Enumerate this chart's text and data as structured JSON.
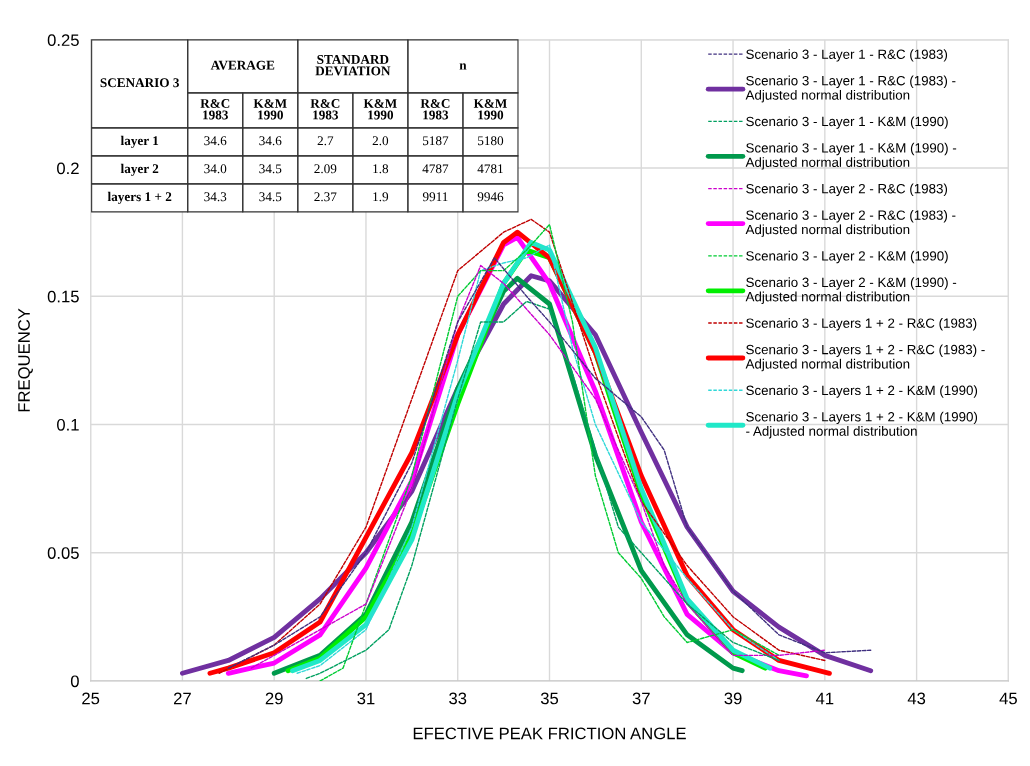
{
  "chart_data": {
    "type": "line",
    "xlabel": "EFECTIVE PEAK FRICTION ANGLE",
    "ylabel": "FREQUENCY",
    "xlim": [
      25,
      45
    ],
    "xticks": [
      25,
      27,
      29,
      31,
      33,
      35,
      37,
      39,
      41,
      43,
      45
    ],
    "ylim": [
      0,
      0.25
    ],
    "yticks": [
      0,
      0.05,
      0.1,
      0.15,
      0.2,
      0.25
    ],
    "grid": true,
    "legend": "top right",
    "marker": "none",
    "series": [
      {
        "name": "Scenario 3 - Layer 1 - R&C (1983)",
        "color": "#403080",
        "line_style": "dashed",
        "x": [
          28,
          29,
          30,
          31,
          32,
          33,
          33.8,
          34.5,
          35,
          36,
          37,
          37.5,
          38,
          39,
          40,
          41,
          42
        ],
        "values": [
          0.005,
          0.014,
          0.025,
          0.05,
          0.085,
          0.14,
          0.165,
          0.15,
          0.14,
          0.118,
          0.103,
          0.09,
          0.06,
          0.035,
          0.018,
          0.011,
          0.012
        ]
      },
      {
        "name": "Scenario 3 - Layer 1 - R&C (1983) -\nAdjusted normal distribution",
        "color": "#7030a0",
        "line_style": "solid",
        "x": [
          27,
          28,
          29,
          30,
          31,
          32,
          33,
          34,
          34.6,
          35,
          36,
          37,
          38,
          39,
          40,
          41,
          42
        ],
        "values": [
          0.003,
          0.008,
          0.017,
          0.032,
          0.05,
          0.074,
          0.114,
          0.147,
          0.158,
          0.156,
          0.135,
          0.097,
          0.06,
          0.035,
          0.021,
          0.01,
          0.004
        ]
      },
      {
        "name": "Scenario 3 - Layer 1 - K&M (1990)",
        "color": "#00a060",
        "line_style": "dashed",
        "x": [
          29.7,
          30,
          31,
          31.5,
          32,
          33,
          33.5,
          34,
          34.5,
          35,
          35.5,
          36,
          36.5,
          37,
          38,
          39,
          40
        ],
        "values": [
          0.001,
          0.003,
          0.012,
          0.02,
          0.045,
          0.11,
          0.14,
          0.14,
          0.148,
          0.145,
          0.12,
          0.09,
          0.06,
          0.05,
          0.03,
          0.015,
          0.008
        ]
      },
      {
        "name": "Scenario 3 - Layer 1 - K&M (1990) -\nAdjusted normal distribution",
        "color": "#00994c",
        "line_style": "solid",
        "x": [
          29,
          30,
          31,
          32,
          33,
          34,
          34.3,
          35,
          36,
          37,
          38,
          39,
          39.2
        ],
        "values": [
          0.003,
          0.01,
          0.026,
          0.062,
          0.114,
          0.152,
          0.157,
          0.147,
          0.088,
          0.043,
          0.018,
          0.005,
          0.004
        ]
      },
      {
        "name": "Scenario 3 - Layer 2 - R&C (1983)",
        "color": "#cc00cc",
        "line_style": "dashed",
        "x": [
          28.5,
          29,
          30,
          31,
          32,
          33,
          33.5,
          34,
          35,
          36,
          37,
          37.5,
          38,
          39,
          40,
          41
        ],
        "values": [
          0.005,
          0.01,
          0.02,
          0.03,
          0.075,
          0.14,
          0.162,
          0.155,
          0.135,
          0.11,
          0.07,
          0.045,
          0.03,
          0.01,
          0.01,
          0.012
        ]
      },
      {
        "name": "Scenario 3 - Layer 2 - R&C (1983) -\nAdjusted normal distribution",
        "color": "#ff00ff",
        "line_style": "solid",
        "x": [
          28,
          29,
          30,
          31,
          32,
          33,
          34,
          34.3,
          35,
          36,
          37,
          38,
          39,
          40,
          40.6
        ],
        "values": [
          0.003,
          0.007,
          0.018,
          0.044,
          0.078,
          0.135,
          0.17,
          0.173,
          0.155,
          0.113,
          0.062,
          0.026,
          0.011,
          0.004,
          0.002
        ]
      },
      {
        "name": "Scenario 3 - Layer 2 - K&M (1990)",
        "color": "#00cc33",
        "line_style": "dashed",
        "x": [
          30,
          30.5,
          31,
          32,
          33,
          33.5,
          34,
          34.5,
          35,
          35.5,
          36,
          36.5,
          37,
          37.5,
          38,
          39,
          40
        ],
        "values": [
          0,
          0.005,
          0.03,
          0.08,
          0.15,
          0.16,
          0.16,
          0.168,
          0.178,
          0.14,
          0.08,
          0.05,
          0.04,
          0.025,
          0.015,
          0.02,
          0.01
        ]
      },
      {
        "name": "Scenario 3 - Layer 2 - K&M (1990) -\nAdjusted normal distribution",
        "color": "#00ee00",
        "line_style": "solid",
        "x": [
          29.3,
          30,
          31,
          32,
          33,
          34,
          34.5,
          35,
          36,
          37,
          38,
          39,
          39.7
        ],
        "values": [
          0.004,
          0.009,
          0.025,
          0.057,
          0.108,
          0.155,
          0.168,
          0.165,
          0.128,
          0.073,
          0.031,
          0.011,
          0.005
        ]
      },
      {
        "name": "Scenario 3 - Layers 1 + 2 - R&C (1983)",
        "color": "#c00000",
        "line_style": "dashed",
        "x": [
          27.8,
          29,
          30,
          31,
          32,
          33,
          34,
          34.6,
          35,
          36,
          37,
          38,
          39,
          40,
          41
        ],
        "values": [
          0.003,
          0.014,
          0.03,
          0.06,
          0.11,
          0.16,
          0.175,
          0.18,
          0.175,
          0.12,
          0.07,
          0.045,
          0.025,
          0.012,
          0.008
        ]
      },
      {
        "name": "Scenario 3 - Layers 1 + 2 - R&C (1983) -\nAdjusted normal distribution",
        "color": "#ff0000",
        "line_style": "solid",
        "x": [
          27.6,
          28,
          29,
          30,
          31,
          32,
          33,
          34,
          34.3,
          35,
          36,
          37,
          38,
          39,
          40,
          41.1
        ],
        "values": [
          0.003,
          0.005,
          0.011,
          0.023,
          0.056,
          0.089,
          0.135,
          0.171,
          0.175,
          0.165,
          0.128,
          0.08,
          0.041,
          0.02,
          0.008,
          0.003
        ]
      },
      {
        "name": "Scenario 3 - Layers 1 + 2 - K&M (1990)",
        "color": "#30d8d8",
        "line_style": "dashed",
        "x": [
          29.5,
          30,
          31,
          32,
          33,
          33.5,
          34,
          34.5,
          35,
          35.5,
          36,
          37,
          38,
          39,
          40
        ],
        "values": [
          0.003,
          0.006,
          0.02,
          0.06,
          0.125,
          0.16,
          0.163,
          0.165,
          0.17,
          0.13,
          0.1,
          0.062,
          0.04,
          0.02,
          0.008
        ]
      },
      {
        "name": "Scenario 3 - Layers 1 + 2 - K&M (1990)\n- Adjusted normal distribution",
        "color": "#20e8c8",
        "line_style": "solid",
        "x": [
          29.4,
          30,
          31,
          32,
          33,
          34,
          34.6,
          35,
          36,
          37,
          38,
          39,
          39.8
        ],
        "values": [
          0.004,
          0.008,
          0.022,
          0.055,
          0.112,
          0.155,
          0.171,
          0.168,
          0.13,
          0.075,
          0.032,
          0.012,
          0.005
        ]
      }
    ],
    "annotations": [
      "SCENARIO 3",
      "AVERAGE",
      "STANDARD\nDEVIATION",
      "n",
      "R&C\n1983",
      "K&M\n1990",
      "R&C\n1983",
      "K&M\n1990",
      "R&C\n1983",
      "K&M\n1990",
      "layer 1",
      "34.6",
      "34.6",
      "2.7",
      "2.0",
      "5187",
      "5180",
      "layer 2",
      "34.0",
      "34.5",
      "2.09",
      "1.8",
      "4787",
      "4781",
      "layers 1 + 2",
      "34.3",
      "34.5",
      "2.37",
      "1.9",
      "9911",
      "9946"
    ]
  }
}
